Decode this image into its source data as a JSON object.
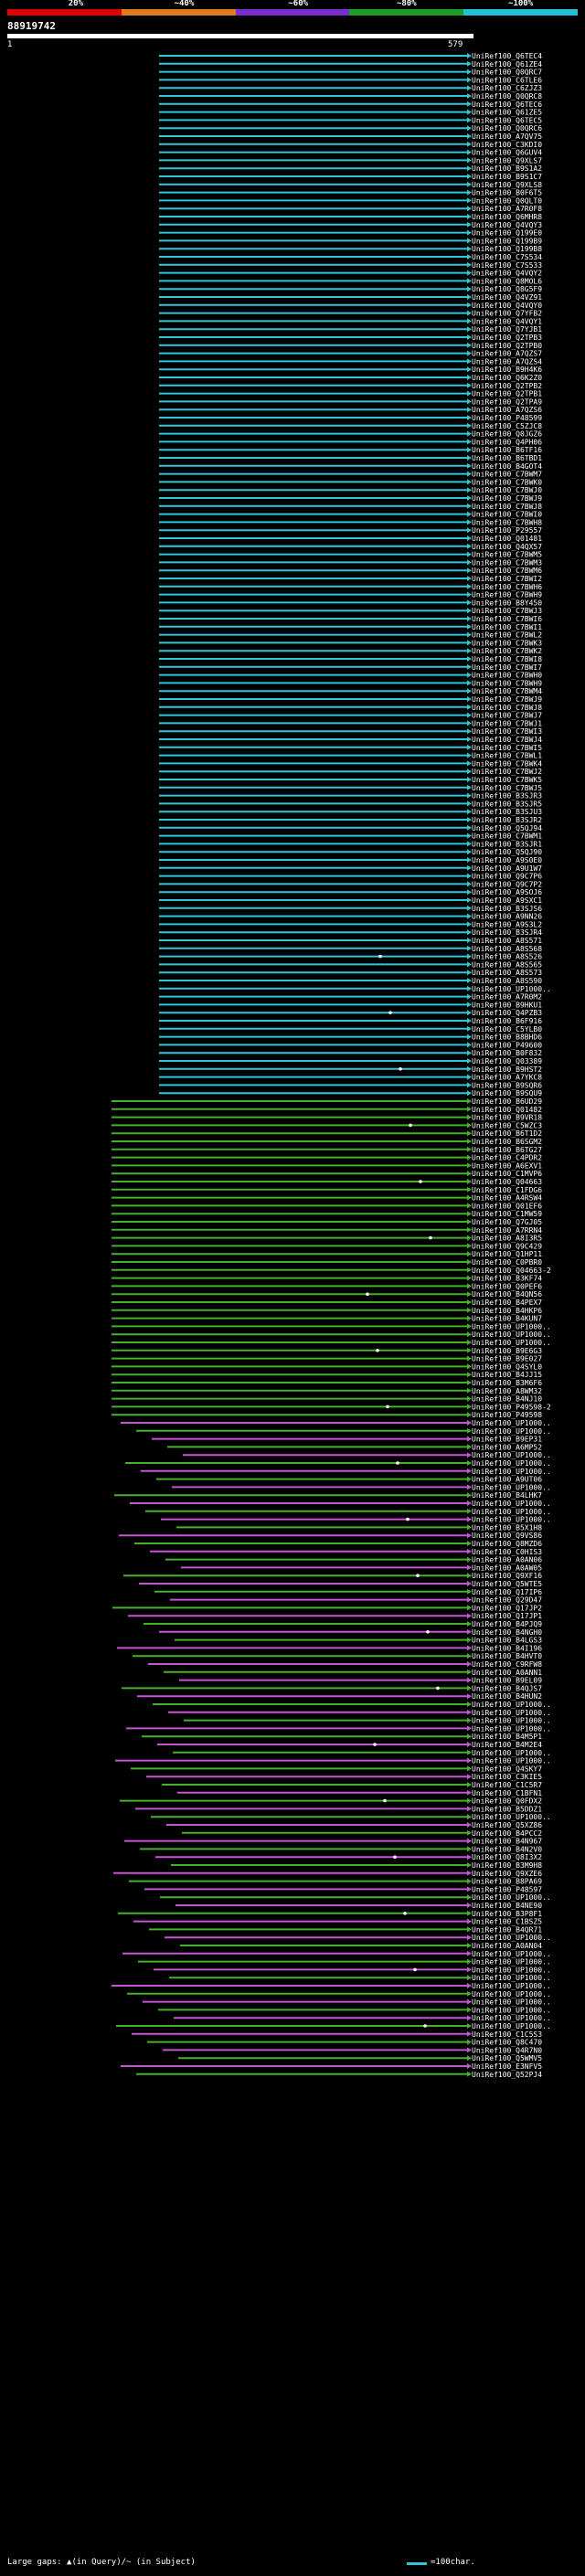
{
  "scale": {
    "labels": [
      "20%",
      "~40%",
      "~60%",
      "~80%",
      "~100%"
    ],
    "colors": [
      "#e00000",
      "#e07a1d",
      "#7c2ccf",
      "#1f9d24",
      "#20c2d5"
    ]
  },
  "query": {
    "id": "88919742",
    "start": "1",
    "end": "579"
  },
  "legend": {
    "text": "Large gaps: ▲(in Query)/~ (in Subject)",
    "length_label": "=100char."
  },
  "colors": {
    "cyan": "#2ec7d7",
    "green": "#45b12a",
    "magenta": "#c655d4",
    "white": "#ffffff"
  },
  "hits": [
    "UniRef100_Q6TEC4",
    "UniRef100_Q61ZE4",
    "UniRef100_Q0QRC7",
    "UniRef100_C6TLE6",
    "UniRef100_C6ZJZ3",
    "UniRef100_Q0QRC8",
    "UniRef100_Q6TEC6",
    "UniRef100_Q61ZE5",
    "UniRef100_Q6TEC5",
    "UniRef100_Q0QRC6",
    "UniRef100_A7QV75",
    "UniRef100_C3KDI0",
    "UniRef100_Q6GUV4",
    "UniRef100_Q9XLS7",
    "UniRef100_B9S1A2",
    "UniRef100_B9S1C7",
    "UniRef100_Q9XLS8",
    "UniRef100_B0F6T5",
    "UniRef100_Q0QLT0",
    "UniRef100_A7R0F8",
    "UniRef100_Q6MHR8",
    "UniRef100_Q4VQY3",
    "UniRef100_Q199E0",
    "UniRef100_Q199B9",
    "UniRef100_Q199B8",
    "UniRef100_C7S534",
    "UniRef100_C7S533",
    "UniRef100_Q4VQY2",
    "UniRef100_Q8MOL6",
    "UniRef100_Q8G5F9",
    "UniRef100_Q4VZ91",
    "UniRef100_Q4VQY0",
    "UniRef100_Q7YFB2",
    "UniRef100_Q4VQY1",
    "UniRef100_Q7YJB1",
    "UniRef100_Q2TPB3",
    "UniRef100_Q2TPB0",
    "UniRef100_A7QZS7",
    "UniRef100_A7QZS4",
    "UniRef100_B9H4K6",
    "UniRef100_Q6K2Z0",
    "UniRef100_Q2TPB2",
    "UniRef100_Q2TPB1",
    "UniRef100_Q2TPA9",
    "UniRef100_A7QZS6",
    "UniRef100_P48599",
    "UniRef100_C5ZJC8",
    "UniRef100_Q0JGZ6",
    "UniRef100_Q4PH06",
    "UniRef100_B6TF16",
    "UniRef100_B6TBD1",
    "UniRef100_B4GOT4",
    "UniRef100_C7BWM7",
    "UniRef100_C7BWK0",
    "UniRef100_C7BWJ0",
    "UniRef100_C7BWJ9",
    "UniRef100_C7BWJ8",
    "UniRef100_C7BWI0",
    "UniRef100_C7BWH8",
    "UniRef100_P29557",
    "UniRef100_Q01481",
    "UniRef100_Q4QX57",
    "UniRef100_C7BWM5",
    "UniRef100_C7BWM3",
    "UniRef100_C7BWM6",
    "UniRef100_C7BWI2",
    "UniRef100_C7BWH6",
    "UniRef100_C7BWH9",
    "UniRef100_B8Y450",
    "UniRef100_C7BWJ3",
    "UniRef100_C7BWI6",
    "UniRef100_C7BWI1",
    "UniRef100_C7BWL2",
    "UniRef100_C7BWK3",
    "UniRef100_C7BWK2",
    "UniRef100_C7BWI8",
    "UniRef100_C7BWI7",
    "UniRef100_C7BWH0",
    "UniRef100_C7BWH9",
    "UniRef100_C7BWM4",
    "UniRef100_C7BWJ9",
    "UniRef100_C7BWJ8",
    "UniRef100_C7BWJ7",
    "UniRef100_C7BWJ1",
    "UniRef100_C7BWI3",
    "UniRef100_C7BWJ4",
    "UniRef100_C7BWI5",
    "UniRef100_C7BWL1",
    "UniRef100_C7BWK4",
    "UniRef100_C7BWJ2",
    "UniRef100_C7BWK5",
    "UniRef100_C7BWJ5",
    "UniRef100_B3SJR3",
    "UniRef100_B3SJR5",
    "UniRef100_B3SJU3",
    "UniRef100_B3SJR2",
    "UniRef100_Q5QJ94",
    "UniRef100_C7BWM1",
    "UniRef100_B3SJR1",
    "UniRef100_Q5QJ90",
    "UniRef100_A9S0E0",
    "UniRef100_A9U1W7",
    "UniRef100_Q9C7P6",
    "UniRef100_Q9C7P2",
    "UniRef100_A9SOJ6",
    "UniRef100_A9SXC1",
    "UniRef100_B3SJS6",
    "UniRef100_A9NN26",
    "UniRef100_A9S3L2",
    "UniRef100_B3SJR4",
    "UniRef100_A8S571",
    "UniRef100_A8S568",
    "UniRef100_A8S526",
    "UniRef100_A8S565",
    "UniRef100_A8S573",
    "UniRef100_A8S590",
    "UniRef100_UP1000..",
    "UniRef100_A7R0M2",
    "UniRef100_B9HKU1",
    "UniRef100_Q4PZB3",
    "UniRef100_B6F916",
    "UniRef100_C5YLB0",
    "UniRef100_B8BHD6",
    "UniRef100_P49600",
    "UniRef100_B0F832",
    "UniRef100_Q03389",
    "UniRef100_B9HST2",
    "UniRef100_A7YKC8",
    "UniRef100_B9SQR6",
    "UniRef100_B9SQU9",
    "UniRef100_B6UD29",
    "UniRef100_Q01482",
    "UniRef100_B9VR18",
    "UniRef100_C5WZC3",
    "UniRef100_B6T1D2",
    "UniRef100_B6SGM2",
    "UniRef100_B6TG27",
    "UniRef100_C4PDR2",
    "UniRef100_A6EXV1",
    "UniRef100_C1MVP6",
    "UniRef100_Q04663",
    "UniRef100_C1FDG6",
    "UniRef100_A4RSW4",
    "UniRef100_Q01EF6",
    "UniRef100_C1MW59",
    "UniRef100_Q7GJ05",
    "UniRef100_A7RRN4",
    "UniRef100_A8I3R5",
    "UniRef100_Q9C429",
    "UniRef100_Q1HP11",
    "UniRef100_C0PBR0",
    "UniRef100_Q04663-2",
    "UniRef100_B3KF74",
    "UniRef100_Q0PEF6",
    "UniRef100_B4QN56",
    "UniRef100_B4PEX7",
    "UniRef100_B4HKP6",
    "UniRef100_B4KUN7",
    "UniRef100_UP1000..",
    "UniRef100_UP1000..",
    "UniRef100_UP1000..",
    "UniRef100_B9E6G3",
    "UniRef100_B9E027",
    "UniRef100_Q4SYL0",
    "UniRef100_B4JJ15",
    "UniRef100_B3M6F6",
    "UniRef100_A8WM32",
    "UniRef100_B4NJ10",
    "UniRef100_P49598-2",
    "UniRef100_P49598",
    "UniRef100_UP1000..",
    "UniRef100_UP1000..",
    "UniRef100_B9EP31",
    "UniRef100_A6MP52",
    "UniRef100_UP1000..",
    "UniRef100_UP1000..",
    "UniRef100_UP1000..",
    "UniRef100_A9UT06",
    "UniRef100_UP1000..",
    "UniRef100_B4LHK7",
    "UniRef100_UP1000..",
    "UniRef100_UP1000..",
    "UniRef100_UP1000..",
    "UniRef100_B5X1H8",
    "UniRef100_Q9VS86",
    "UniRef100_Q8MZD6",
    "UniRef100_C0HIS3",
    "UniRef100_A0AN06",
    "UniRef100_A0AW05",
    "UniRef100_Q9XF16",
    "UniRef100_Q5WTE5",
    "UniRef100_Q17IP6",
    "UniRef100_Q29D47",
    "UniRef100_Q17JP2",
    "UniRef100_Q17JP1",
    "UniRef100_B4PJQ9",
    "UniRef100_B4NGH0",
    "UniRef100_B4LGS3",
    "UniRef100_B4I196",
    "UniRef100_B4HVT0",
    "UniRef100_C9RFW8",
    "UniRef100_A0ANN1",
    "UniRef100_B9EL09",
    "UniRef100_B4QJS7",
    "UniRef100_B4HUN2",
    "UniRef100_UP1000..",
    "UniRef100_UP1000..",
    "UniRef100_UP1000..",
    "UniRef100_UP1000..",
    "UniRef100_B4M5P1",
    "UniRef100_B4M2E4",
    "UniRef100_UP1000..",
    "UniRef100_UP1000..",
    "UniRef100_Q4SKY7",
    "UniRef100_C3KIE5",
    "UniRef100_C1C5R7",
    "UniRef100_C1BFN1",
    "UniRef100_Q0FDX2",
    "UniRef100_B5DDZ1",
    "UniRef100_UP1000..",
    "UniRef100_Q5XZ86",
    "UniRef100_B4PCC2",
    "UniRef100_B4N967",
    "UniRef100_B4N2V0",
    "UniRef100_Q8I3X2",
    "UniRef100_B3M9H8",
    "UniRef100_Q9XZE6",
    "UniRef100_B8PA69",
    "UniRef100_P48597",
    "UniRef100_UP1000..",
    "UniRef100_B4NE90",
    "UniRef100_B3P8F1",
    "UniRef100_C1BSZ5",
    "UniRef100_B4QR71",
    "UniRef100_UP1000..",
    "UniRef100_A0AN04",
    "UniRef100_UP1000..",
    "UniRef100_UP1000..",
    "UniRef100_UP1000..",
    "UniRef100_UP1000..",
    "UniRef100_UP1000..",
    "UniRef100_UP1000..",
    "UniRef100_UP1000..",
    "UniRef100_UP1000..",
    "UniRef100_UP1000..",
    "UniRef100_UP1000..",
    "UniRef100_C1C5S3",
    "UniRef100_Q8C470",
    "UniRef100_Q4R7N0",
    "UniRef100_Q5WMV5",
    "UniRef100_E3NFV5",
    "UniRef100_Q52PJ4"
  ]
}
